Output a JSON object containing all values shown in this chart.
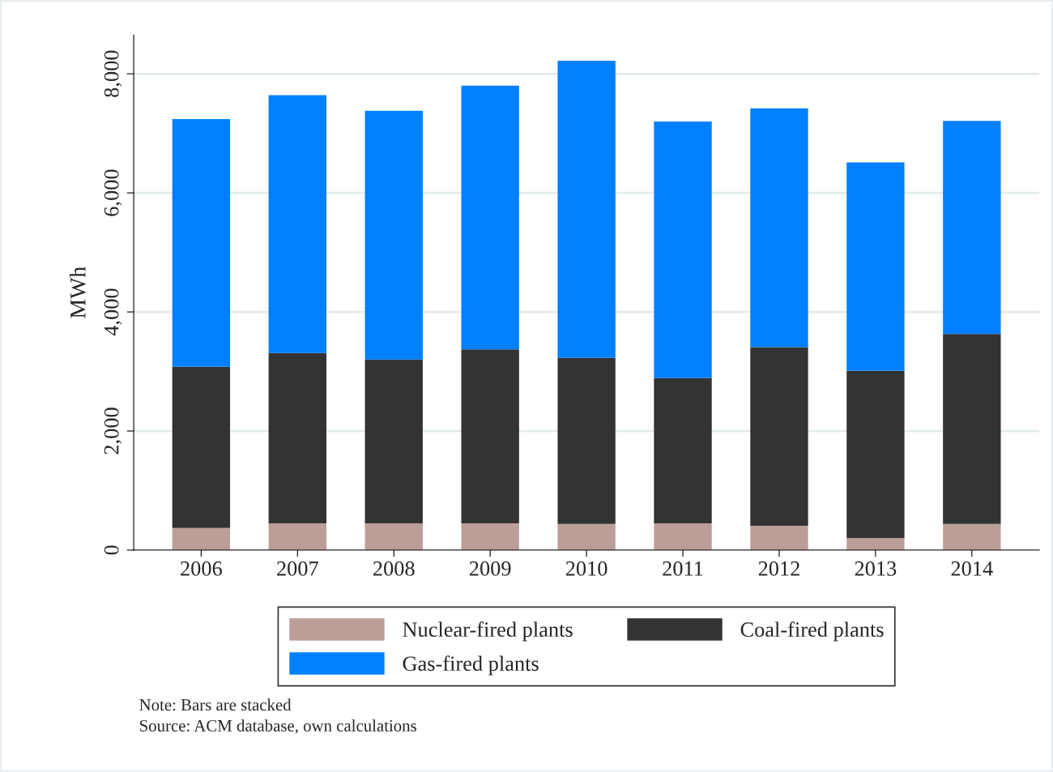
{
  "chart_data": {
    "type": "bar",
    "stacked": true,
    "ylabel": "MWh",
    "categories": [
      "2006",
      "2007",
      "2008",
      "2009",
      "2010",
      "2011",
      "2012",
      "2013",
      "2014"
    ],
    "series": [
      {
        "name": "Nuclear-fired plants",
        "color": "#bc9e98",
        "values": [
          370,
          450,
          450,
          450,
          440,
          450,
          410,
          200,
          440
        ]
      },
      {
        "name": "Coal-fired plants",
        "color": "#333333",
        "values": [
          2710,
          2860,
          2750,
          2920,
          2790,
          2440,
          3000,
          2810,
          3190
        ]
      },
      {
        "name": "Gas-fired plants",
        "color": "#0080ff",
        "values": [
          4160,
          4330,
          4180,
          4430,
          4990,
          4310,
          4010,
          3500,
          3580
        ]
      }
    ],
    "ylim": [
      0,
      8650
    ],
    "yticks": [
      {
        "value": 0,
        "label": "0"
      },
      {
        "value": 2000,
        "label": "2,000"
      },
      {
        "value": 4000,
        "label": "4,000"
      },
      {
        "value": 6000,
        "label": "6,000"
      },
      {
        "value": 8000,
        "label": "8,000"
      }
    ],
    "grid": "y",
    "legend": "bottom",
    "annotations": [
      "Note: Bars are stacked",
      "Source: ACM database, own calculations"
    ]
  }
}
